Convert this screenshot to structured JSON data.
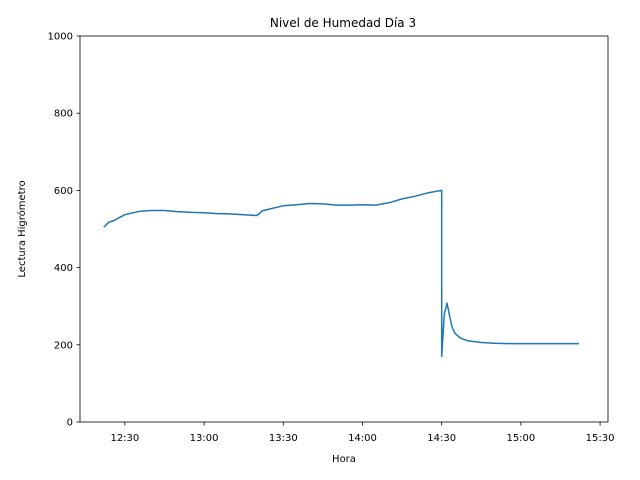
{
  "chart_data": {
    "type": "line",
    "title": "Nivel de Humedad Día 3",
    "xlabel": "Hora",
    "ylabel": "Lectura Higrómetro",
    "xlim": [
      "12:13",
      "15:33"
    ],
    "ylim": [
      0,
      1000
    ],
    "x_ticks": [
      "12:30",
      "13:00",
      "13:30",
      "14:00",
      "14:30",
      "15:00",
      "15:30"
    ],
    "y_ticks": [
      0,
      200,
      400,
      600,
      800,
      1000
    ],
    "grid": false,
    "series": [
      {
        "color": "#1f77b4",
        "x": [
          "12:22",
          "12:24",
          "12:26",
          "12:28",
          "12:30",
          "12:33",
          "12:36",
          "12:40",
          "12:45",
          "12:50",
          "12:55",
          "13:00",
          "13:05",
          "13:10",
          "13:15",
          "13:20",
          "13:22",
          "13:25",
          "13:30",
          "13:35",
          "13:40",
          "13:45",
          "13:50",
          "13:55",
          "14:00",
          "14:05",
          "14:10",
          "14:15",
          "14:20",
          "14:25",
          "14:30",
          "14:30",
          "14:31",
          "14:32",
          "14:33",
          "14:34",
          "14:35",
          "14:37",
          "14:40",
          "14:45",
          "14:50",
          "14:55",
          "15:00",
          "15:05",
          "15:10",
          "15:15",
          "15:20",
          "15:22"
        ],
        "y": [
          505,
          518,
          522,
          530,
          537,
          542,
          546,
          548,
          548,
          545,
          543,
          542,
          540,
          539,
          537,
          535,
          547,
          552,
          560,
          563,
          566,
          565,
          562,
          562,
          563,
          562,
          568,
          578,
          585,
          594,
          600,
          170,
          280,
          308,
          275,
          245,
          230,
          218,
          210,
          206,
          204,
          203,
          203,
          203,
          203,
          203,
          203,
          203
        ]
      }
    ]
  }
}
